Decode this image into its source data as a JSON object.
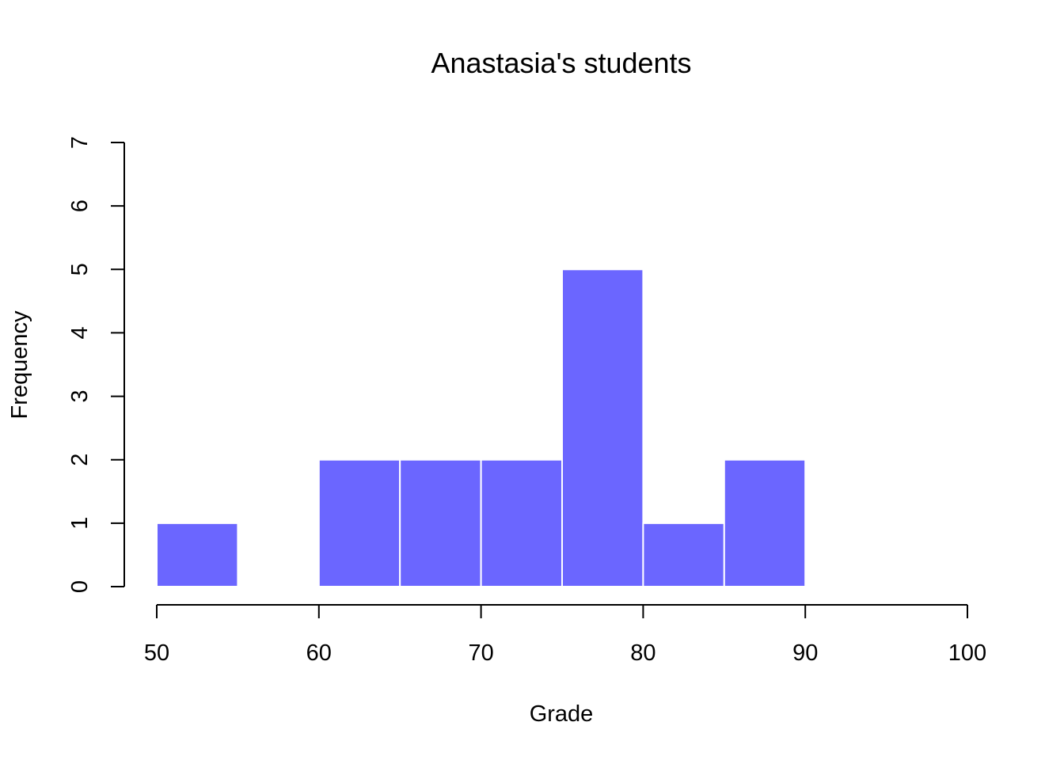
{
  "chart_data": {
    "type": "bar",
    "title": "Anastasia's students",
    "xlabel": "Grade",
    "ylabel": "Frequency",
    "bin_edges": [
      50,
      55,
      60,
      65,
      70,
      75,
      80,
      85,
      90
    ],
    "values": [
      1,
      0,
      2,
      2,
      2,
      5,
      1,
      2
    ],
    "xlim": [
      50,
      100
    ],
    "ylim": [
      0,
      7
    ],
    "x_ticks": [
      "50",
      "60",
      "70",
      "80",
      "90",
      "100"
    ],
    "y_ticks": [
      "0",
      "1",
      "2",
      "3",
      "4",
      "5",
      "6",
      "7"
    ],
    "bar_color": "#6B66FF",
    "bar_border_color": "#FFFFFF",
    "grid": false,
    "legend": "none"
  }
}
